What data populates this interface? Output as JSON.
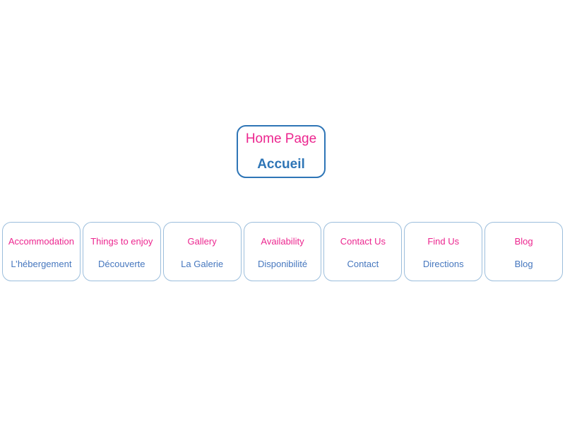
{
  "diagram": {
    "type": "sitemap",
    "home": {
      "label_en": "Home Page",
      "label_fr": "Accueil"
    },
    "nav": {
      "items": [
        {
          "label_en": "Accommodation",
          "label_fr": "L’hébergement"
        },
        {
          "label_en": "Things to enjoy",
          "label_fr": "Découverte"
        },
        {
          "label_en": "Gallery",
          "label_fr": "La Galerie"
        },
        {
          "label_en": "Availability",
          "label_fr": "Disponibilité"
        },
        {
          "label_en": "Contact Us",
          "label_fr": "Contact"
        },
        {
          "label_en": "Find Us",
          "label_fr": "Directions"
        },
        {
          "label_en": "Blog",
          "label_fr": "Blog"
        }
      ]
    },
    "colors": {
      "background": "#FFFFFF",
      "accent_pink": "#EC268F",
      "home_border_blue": "#2E75B6",
      "home_text_blue": "#2E75B6",
      "nav_border_blue": "#9CBEDC",
      "nav_text_blue": "#4677BE"
    }
  }
}
